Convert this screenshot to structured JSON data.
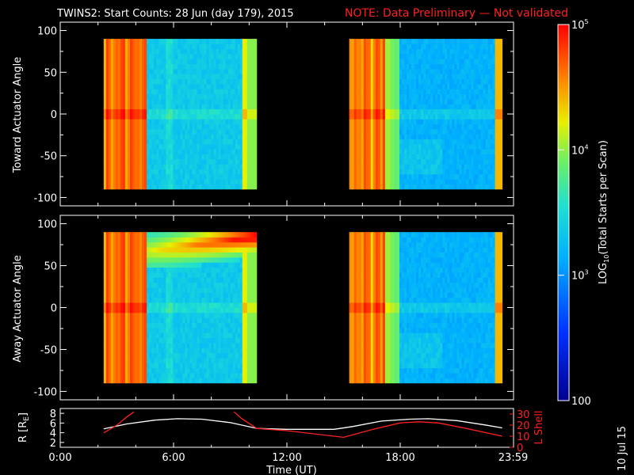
{
  "header": {
    "title": "TWINS2: Start Counts: 28 Jun (day 179), 2015",
    "note": "NOTE: Data Preliminary — Not validated"
  },
  "footer": {
    "date_stamp": "10 Jul 15"
  },
  "colors": {
    "note": "#ff2020",
    "axis": "#ffffff",
    "background": "#000000"
  },
  "colorbar": {
    "label_prefix": "LOG",
    "label_sub": "10",
    "label_suffix": "(Total Starts per Scan)",
    "ticks": [
      {
        "base": "10",
        "exp": "5",
        "value": 100000
      },
      {
        "base": "10",
        "exp": "4",
        "value": 10000
      },
      {
        "base": "10",
        "exp": "3",
        "value": 1000
      },
      {
        "base": "100",
        "exp": "",
        "value": 100
      }
    ]
  },
  "chart_data": [
    {
      "type": "heatmap",
      "name": "toward",
      "ylabel": "Toward Actuator Angle",
      "ylim": [
        -110,
        110
      ],
      "yticks": [
        "100",
        "50",
        "0",
        "-50",
        "-100"
      ],
      "ytick_values": [
        100,
        50,
        0,
        -50,
        -100
      ],
      "xlim_hours": [
        0,
        24
      ],
      "data_blocks_hours": [
        [
          2.3,
          10.4
        ],
        [
          15.3,
          23.4
        ]
      ],
      "angle_range": [
        -90,
        90
      ]
    },
    {
      "type": "heatmap",
      "name": "away",
      "ylabel": "Away Actuator Angle",
      "ylim": [
        -110,
        110
      ],
      "yticks": [
        "100",
        "50",
        "0",
        "-50",
        "-100"
      ],
      "ytick_values": [
        100,
        50,
        0,
        -50,
        -100
      ],
      "xlim_hours": [
        0,
        24
      ],
      "data_blocks_hours": [
        [
          2.3,
          10.4
        ],
        [
          15.3,
          23.4
        ]
      ],
      "angle_range": [
        -90,
        90
      ]
    },
    {
      "type": "line",
      "name": "ephemeris",
      "ylabel_left": "R [R",
      "ylabel_left_sub": "E",
      "ylabel_left_end": "]",
      "ylabel_right": "L Shell",
      "ylim_left": [
        1,
        9
      ],
      "ylim_right": [
        0,
        35
      ],
      "yticks_left": [
        "8",
        "6",
        "4",
        "2"
      ],
      "ytick_left_values": [
        8,
        6,
        4,
        2
      ],
      "yticks_right": [
        "30",
        "20",
        "10",
        "0"
      ],
      "ytick_right_values": [
        30,
        20,
        10,
        0
      ],
      "xlabel": "Time (UT)",
      "xticks": [
        "0:00",
        "6:00",
        "12:00",
        "18:00",
        "23:59"
      ],
      "xtick_values": [
        0,
        6,
        12,
        18,
        23.98
      ],
      "series": [
        {
          "name": "R",
          "color": "#ffffff",
          "x": [
            2.3,
            3.5,
            5.0,
            6.2,
            7.5,
            9.0,
            10.4,
            12.0,
            14.5,
            15.5,
            17.0,
            18.5,
            19.5,
            21.0,
            22.5,
            23.4
          ],
          "values": [
            4.8,
            5.8,
            6.6,
            6.9,
            6.8,
            6.1,
            4.9,
            4.7,
            4.7,
            5.3,
            6.4,
            6.8,
            6.9,
            6.5,
            5.6,
            5.0
          ]
        },
        {
          "name": "L Shell",
          "color": "#ff2020",
          "x": [
            2.3,
            3.0,
            3.5,
            3.9
          ],
          "values": [
            13,
            20,
            27,
            32
          ]
        },
        {
          "name": "L Shell",
          "color": "#ff2020",
          "x": [
            9.2,
            9.6,
            10.4,
            12.0,
            15.0,
            16.5,
            18.0,
            19.0,
            20.0,
            21.5,
            23.4
          ],
          "values": [
            32,
            26,
            17,
            15,
            9,
            16,
            22,
            23,
            22,
            17,
            10
          ]
        }
      ]
    }
  ]
}
